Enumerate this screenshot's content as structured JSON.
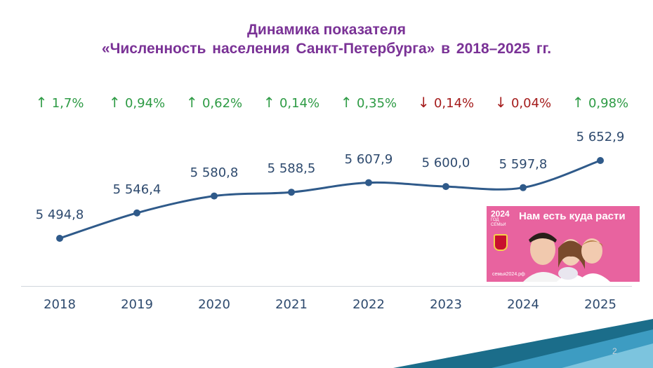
{
  "title": {
    "line1": "Динамика показателя",
    "line2": "«Численность  населения  Санкт-Петербурга»  в  2018–2025  гг."
  },
  "chart_data": {
    "type": "line",
    "title": "Динамика показателя «Численность населения Санкт-Петербурга» в 2018–2025 гг.",
    "categories": [
      "2018",
      "2019",
      "2020",
      "2021",
      "2022",
      "2023",
      "2024",
      "2025"
    ],
    "values": [
      5494.8,
      5546.4,
      5580.8,
      5588.5,
      5607.9,
      5600.0,
      5597.8,
      5652.9
    ],
    "value_labels": [
      "5 494,8",
      "5 546,4",
      "5 580,8",
      "5 588,5",
      "5 607,9",
      "5 600,0",
      "5 597,8",
      "5 652,9"
    ],
    "changes": [
      {
        "dir": "up",
        "text": "1,7%"
      },
      {
        "dir": "up",
        "text": "0,94%"
      },
      {
        "dir": "up",
        "text": "0,62%"
      },
      {
        "dir": "up",
        "text": "0,14%"
      },
      {
        "dir": "up",
        "text": "0,35%"
      },
      {
        "dir": "down",
        "text": "0,14%"
      },
      {
        "dir": "down",
        "text": "0,04%"
      },
      {
        "dir": "up",
        "text": "0,98%"
      }
    ],
    "line_color": "#2f5a8a",
    "up_color": "#2e9b45",
    "down_color": "#a51d1d",
    "grid": false,
    "legend": "none"
  },
  "banner": {
    "logo_year": "2024",
    "logo_sub": "ГОД СЕМЬИ",
    "slogan": "Нам есть куда расти",
    "site": "семья2024.рф"
  },
  "page_number": "2",
  "icons": {
    "up": "arrow-up-icon",
    "down": "arrow-down-icon"
  }
}
